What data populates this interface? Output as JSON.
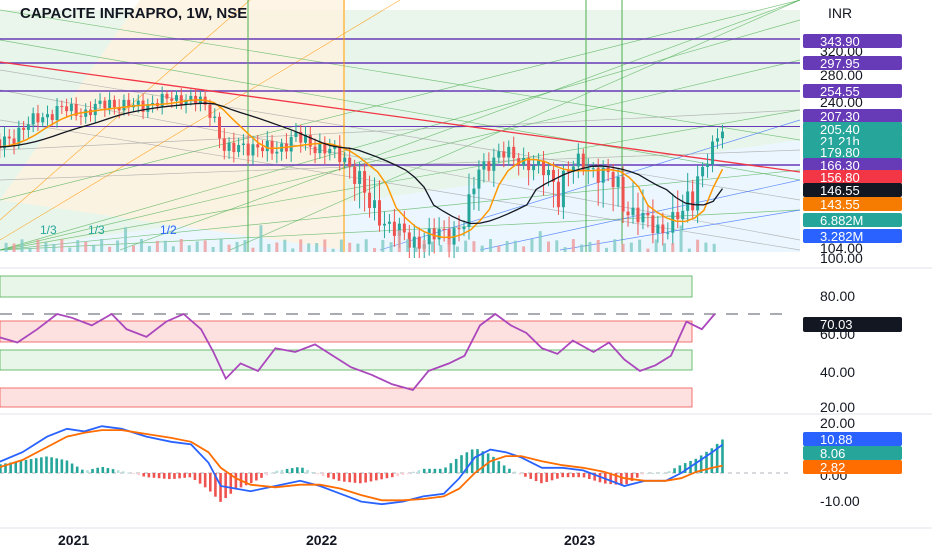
{
  "header": {
    "title": "CAPACITE INFRAPRO, 1W, NSE",
    "currency": "INR"
  },
  "colors": {
    "up": "#26a69a",
    "down": "#ef5350",
    "purple": "#673ab7",
    "teal": "#26a69a",
    "red": "#f23645",
    "black": "#131722",
    "orange": "#f57c00",
    "blue": "#2962ff",
    "rsi": "#ab47bc",
    "macd": "#2962ff",
    "signal": "#ff6d00"
  },
  "chart_data": [
    {
      "type": "candlestick",
      "name": "price",
      "ylim": [
        100,
        360
      ],
      "price_ticks": [
        "320.00",
        "280.00",
        "240.00",
        "104.00",
        "100.00"
      ],
      "x_ticks": [
        "2021",
        "2022",
        "2023"
      ],
      "level_labels": [
        {
          "value": "343.90",
          "color": "#673ab7"
        },
        {
          "value": "297.95",
          "color": "#673ab7"
        },
        {
          "value": "254.55",
          "color": "#673ab7"
        },
        {
          "value": "207.30",
          "color": "#673ab7"
        },
        {
          "value": "205.40",
          "color": "#26a69a"
        },
        {
          "value": "21 21h",
          "color": "#26a69a"
        },
        {
          "value": "179.80",
          "color": "#26a69a"
        },
        {
          "value": "166.30",
          "color": "#673ab7"
        },
        {
          "value": "156.80",
          "color": "#f23645"
        },
        {
          "value": "146.55",
          "color": "#131722"
        },
        {
          "value": "143.55",
          "color": "#f57c00"
        },
        {
          "value": "6.882M",
          "color": "#26a69a"
        },
        {
          "value": "3.282M",
          "color": "#2962ff"
        }
      ],
      "fib_labels": [
        "1/3",
        "1/3",
        "1/2"
      ],
      "close_path": [
        [
          2020.7,
          185
        ],
        [
          2020.85,
          215
        ],
        [
          2020.95,
          230
        ],
        [
          2021.05,
          225
        ],
        [
          2021.15,
          238
        ],
        [
          2021.25,
          232
        ],
        [
          2021.35,
          240
        ],
        [
          2021.45,
          245
        ],
        [
          2021.52,
          238
        ],
        [
          2021.57,
          222
        ],
        [
          2021.62,
          178
        ],
        [
          2021.7,
          188
        ],
        [
          2021.8,
          180
        ],
        [
          2021.9,
          195
        ],
        [
          2022.0,
          185
        ],
        [
          2022.1,
          172
        ],
        [
          2022.18,
          142
        ],
        [
          2022.26,
          128
        ],
        [
          2022.35,
          110
        ],
        [
          2022.42,
          115
        ],
        [
          2022.5,
          118
        ],
        [
          2022.57,
          130
        ],
        [
          2022.62,
          164
        ],
        [
          2022.7,
          178
        ],
        [
          2022.78,
          172
        ],
        [
          2022.86,
          160
        ],
        [
          2022.92,
          150
        ],
        [
          2023.0,
          168
        ],
        [
          2023.08,
          160
        ],
        [
          2023.15,
          148
        ],
        [
          2023.22,
          135
        ],
        [
          2023.27,
          127
        ],
        [
          2023.32,
          122
        ],
        [
          2023.38,
          130
        ],
        [
          2023.42,
          138
        ],
        [
          2023.47,
          158
        ],
        [
          2023.52,
          180
        ],
        [
          2023.56,
          205
        ]
      ]
    },
    {
      "type": "line",
      "name": "RSI",
      "ylim": [
        15,
        95
      ],
      "y_ticks": [
        "80.00",
        "60.00",
        "40.00",
        "20.00"
      ],
      "last_value": "70.03",
      "series": [
        {
          "values": [
            [
              2020.7,
              58
            ],
            [
              2020.78,
              55
            ],
            [
              2020.86,
              62
            ],
            [
              2020.94,
              70
            ],
            [
              2021.0,
              68
            ],
            [
              2021.08,
              64
            ],
            [
              2021.16,
              70
            ],
            [
              2021.22,
              62
            ],
            [
              2021.3,
              58
            ],
            [
              2021.38,
              66
            ],
            [
              2021.45,
              70
            ],
            [
              2021.52,
              62
            ],
            [
              2021.57,
              50
            ],
            [
              2021.62,
              36
            ],
            [
              2021.68,
              44
            ],
            [
              2021.75,
              40
            ],
            [
              2021.82,
              52
            ],
            [
              2021.9,
              50
            ],
            [
              2021.98,
              54
            ],
            [
              2022.05,
              48
            ],
            [
              2022.12,
              42
            ],
            [
              2022.2,
              38
            ],
            [
              2022.28,
              33
            ],
            [
              2022.36,
              30
            ],
            [
              2022.42,
              40
            ],
            [
              2022.5,
              44
            ],
            [
              2022.56,
              48
            ],
            [
              2022.62,
              64
            ],
            [
              2022.68,
              70
            ],
            [
              2022.74,
              64
            ],
            [
              2022.8,
              60
            ],
            [
              2022.86,
              52
            ],
            [
              2022.92,
              49
            ],
            [
              2022.98,
              56
            ],
            [
              2023.06,
              50
            ],
            [
              2023.12,
              55
            ],
            [
              2023.18,
              46
            ],
            [
              2023.24,
              40
            ],
            [
              2023.3,
              43
            ],
            [
              2023.36,
              48
            ],
            [
              2023.42,
              66
            ],
            [
              2023.48,
              62
            ],
            [
              2023.53,
              70
            ]
          ]
        }
      ]
    },
    {
      "type": "line",
      "name": "MACD",
      "ylim": [
        -14,
        24
      ],
      "y_ticks": [
        "20.00",
        "0.00",
        "-10.00"
      ],
      "value_labels": [
        {
          "value": "10.88",
          "color": "#2962ff"
        },
        {
          "value": "8.06",
          "color": "#26a69a"
        },
        {
          "value": "2.82",
          "color": "#ff6d00"
        }
      ],
      "series": [
        {
          "values": [
            [
              2020.7,
              4
            ],
            [
              2020.8,
              8
            ],
            [
              2020.9,
              14
            ],
            [
              2020.98,
              17
            ],
            [
              2021.05,
              16
            ],
            [
              2021.12,
              18
            ],
            [
              2021.2,
              17
            ],
            [
              2021.3,
              14
            ],
            [
              2021.4,
              12
            ],
            [
              2021.48,
              11
            ],
            [
              2021.55,
              4
            ],
            [
              2021.6,
              -5
            ],
            [
              2021.66,
              -6
            ],
            [
              2021.72,
              -7
            ],
            [
              2021.82,
              -5
            ],
            [
              2021.92,
              -3
            ],
            [
              2022.0,
              -5
            ],
            [
              2022.08,
              -8
            ],
            [
              2022.16,
              -11
            ],
            [
              2022.24,
              -12
            ],
            [
              2022.32,
              -11
            ],
            [
              2022.4,
              -9
            ],
            [
              2022.48,
              -8
            ],
            [
              2022.54,
              -2
            ],
            [
              2022.6,
              6
            ],
            [
              2022.66,
              9
            ],
            [
              2022.72,
              8
            ],
            [
              2022.78,
              6
            ],
            [
              2022.86,
              2
            ],
            [
              2022.94,
              2
            ],
            [
              2023.02,
              1
            ],
            [
              2023.1,
              -2
            ],
            [
              2023.18,
              -5
            ],
            [
              2023.26,
              -3
            ],
            [
              2023.34,
              -3
            ],
            [
              2023.4,
              0
            ],
            [
              2023.46,
              4
            ],
            [
              2023.52,
              8
            ],
            [
              2023.56,
              10.88
            ]
          ]
        },
        {
          "values": [
            [
              2020.7,
              2
            ],
            [
              2020.8,
              5
            ],
            [
              2020.9,
              10
            ],
            [
              2020.98,
              14
            ],
            [
              2021.05,
              15.5
            ],
            [
              2021.12,
              16.5
            ],
            [
              2021.2,
              16.5
            ],
            [
              2021.3,
              15
            ],
            [
              2021.4,
              13.5
            ],
            [
              2021.48,
              12
            ],
            [
              2021.55,
              8
            ],
            [
              2021.6,
              2
            ],
            [
              2021.66,
              -2
            ],
            [
              2021.72,
              -4.5
            ],
            [
              2021.82,
              -5.5
            ],
            [
              2021.92,
              -4.5
            ],
            [
              2022.0,
              -4.5
            ],
            [
              2022.08,
              -6
            ],
            [
              2022.16,
              -8.5
            ],
            [
              2022.24,
              -10.5
            ],
            [
              2022.32,
              -10.5
            ],
            [
              2022.4,
              -10
            ],
            [
              2022.48,
              -9
            ],
            [
              2022.54,
              -6
            ],
            [
              2022.6,
              0
            ],
            [
              2022.66,
              4.5
            ],
            [
              2022.72,
              6.5
            ],
            [
              2022.78,
              6.5
            ],
            [
              2022.86,
              4.5
            ],
            [
              2022.94,
              3
            ],
            [
              2023.02,
              2
            ],
            [
              2023.1,
              0.5
            ],
            [
              2023.18,
              -2
            ],
            [
              2023.26,
              -3
            ],
            [
              2023.34,
              -3
            ],
            [
              2023.4,
              -2
            ],
            [
              2023.46,
              0.5
            ],
            [
              2023.52,
              2
            ],
            [
              2023.56,
              2.82
            ]
          ]
        }
      ]
    }
  ]
}
